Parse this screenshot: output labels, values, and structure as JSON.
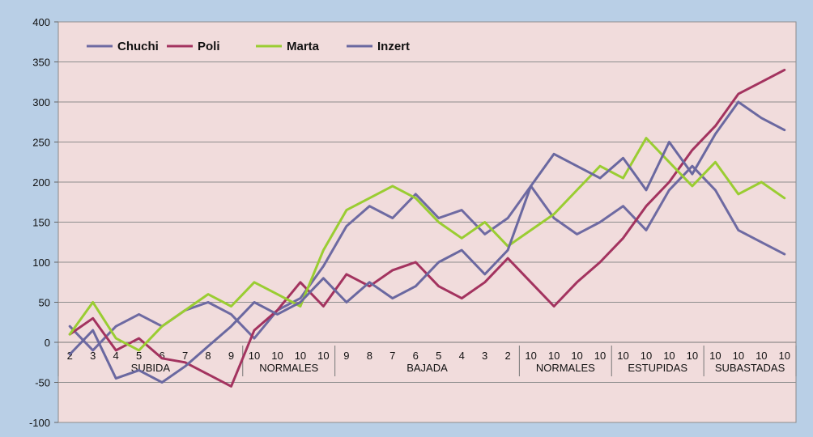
{
  "chart_data": {
    "type": "line",
    "title": "",
    "xlabel": "",
    "ylabel": "",
    "ylim": [
      -100,
      400
    ],
    "yticks": [
      -100,
      -50,
      0,
      50,
      100,
      150,
      200,
      250,
      300,
      350,
      400
    ],
    "grid": "horizontal",
    "legend_placement": "top-left",
    "categories": [
      "2",
      "3",
      "4",
      "5",
      "6",
      "7",
      "8",
      "9",
      "10",
      "10",
      "10",
      "10",
      "9",
      "8",
      "7",
      "6",
      "5",
      "4",
      "3",
      "2",
      "10",
      "10",
      "10",
      "10",
      "10",
      "10",
      "10",
      "10",
      "10",
      "10",
      "10",
      "10"
    ],
    "groups": [
      {
        "label": "SUBIDA",
        "start": 0,
        "end": 7
      },
      {
        "label": "NORMALES",
        "start": 8,
        "end": 11
      },
      {
        "label": "BAJADA",
        "start": 12,
        "end": 19
      },
      {
        "label": "NORMALES",
        "start": 20,
        "end": 23
      },
      {
        "label": "ESTUPIDAS",
        "start": 24,
        "end": 27
      },
      {
        "label": "SUBASTADAS",
        "start": 28,
        "end": 31
      }
    ],
    "series": [
      {
        "name": "Chuchi",
        "color": "#6e6aa2",
        "values": [
          20,
          -10,
          20,
          35,
          20,
          40,
          50,
          35,
          5,
          40,
          55,
          95,
          145,
          170,
          155,
          185,
          155,
          165,
          135,
          155,
          195,
          155,
          135,
          150,
          170,
          140,
          190,
          220,
          190,
          140,
          125,
          110
        ]
      },
      {
        "name": "Poli",
        "color": "#a3335f",
        "values": [
          10,
          30,
          -10,
          5,
          -20,
          -25,
          -40,
          -55,
          15,
          40,
          75,
          45,
          85,
          70,
          90,
          100,
          70,
          55,
          75,
          105,
          75,
          45,
          75,
          100,
          130,
          170,
          200,
          240,
          270,
          310,
          325,
          340
        ]
      },
      {
        "name": "Marta",
        "color": "#9acd32",
        "values": [
          10,
          50,
          5,
          -10,
          20,
          40,
          60,
          45,
          75,
          60,
          45,
          115,
          165,
          180,
          195,
          180,
          150,
          130,
          150,
          120,
          140,
          160,
          190,
          220,
          205,
          255,
          225,
          195,
          225,
          185,
          200,
          180
        ]
      },
      {
        "name": "Inzert",
        "color": "#6a68a0",
        "values": [
          -15,
          15,
          -45,
          -35,
          -50,
          -30,
          -5,
          20,
          50,
          35,
          50,
          80,
          50,
          75,
          55,
          70,
          100,
          115,
          85,
          115,
          195,
          235,
          220,
          205,
          230,
          190,
          250,
          210,
          260,
          300,
          280,
          265
        ]
      }
    ]
  }
}
